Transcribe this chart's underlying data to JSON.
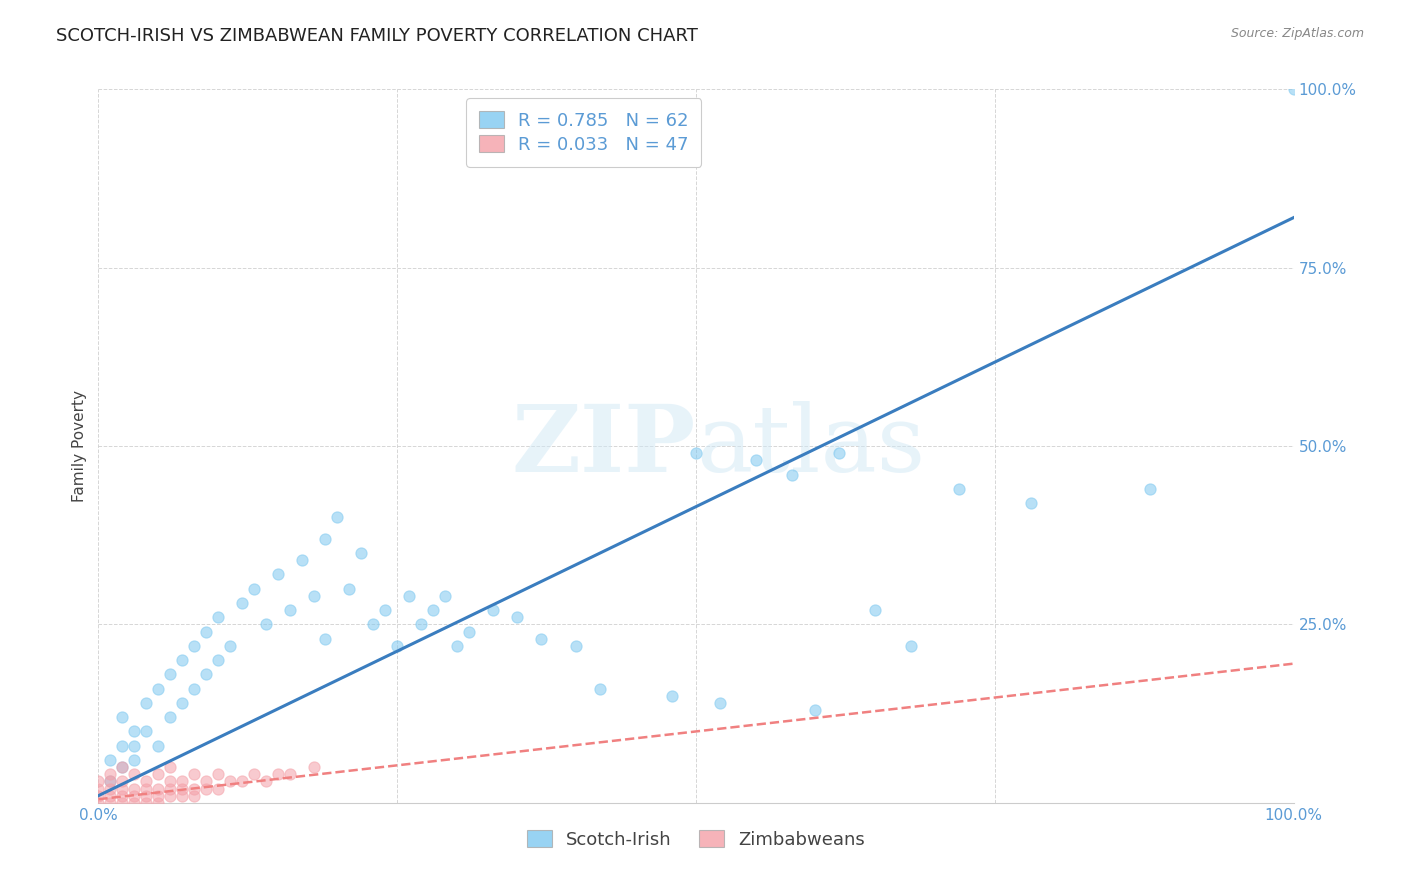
{
  "title": "SCOTCH-IRISH VS ZIMBABWEAN FAMILY POVERTY CORRELATION CHART",
  "source": "Source: ZipAtlas.com",
  "ylabel": "Family Poverty",
  "watermark_zip": "ZIP",
  "watermark_atlas": "atlas",
  "series1_name": "Scotch-Irish",
  "series2_name": "Zimbabweans",
  "series1_color": "#7ec8f0",
  "series2_color": "#f4a0a8",
  "series1_R": 0.785,
  "series1_N": 62,
  "series2_R": 0.033,
  "series2_N": 47,
  "xlim": [
    0,
    1
  ],
  "ylim": [
    0,
    1
  ],
  "background_color": "#ffffff",
  "grid_color": "#cccccc",
  "title_color": "#222222",
  "tick_color": "#5b9bd5",
  "series1_scatter_x": [
    0.01,
    0.01,
    0.02,
    0.02,
    0.02,
    0.03,
    0.03,
    0.03,
    0.04,
    0.04,
    0.05,
    0.05,
    0.06,
    0.06,
    0.07,
    0.07,
    0.08,
    0.08,
    0.09,
    0.09,
    0.1,
    0.1,
    0.11,
    0.12,
    0.13,
    0.14,
    0.15,
    0.16,
    0.17,
    0.18,
    0.19,
    0.19,
    0.2,
    0.21,
    0.22,
    0.23,
    0.24,
    0.25,
    0.26,
    0.27,
    0.28,
    0.29,
    0.3,
    0.31,
    0.33,
    0.35,
    0.37,
    0.4,
    0.42,
    0.48,
    0.5,
    0.52,
    0.55,
    0.58,
    0.6,
    0.62,
    0.65,
    0.68,
    0.72,
    0.78,
    0.88,
    1.0
  ],
  "series1_scatter_y": [
    0.03,
    0.06,
    0.05,
    0.08,
    0.12,
    0.06,
    0.08,
    0.1,
    0.1,
    0.14,
    0.08,
    0.16,
    0.12,
    0.18,
    0.14,
    0.2,
    0.16,
    0.22,
    0.18,
    0.24,
    0.2,
    0.26,
    0.22,
    0.28,
    0.3,
    0.25,
    0.32,
    0.27,
    0.34,
    0.29,
    0.23,
    0.37,
    0.4,
    0.3,
    0.35,
    0.25,
    0.27,
    0.22,
    0.29,
    0.25,
    0.27,
    0.29,
    0.22,
    0.24,
    0.27,
    0.26,
    0.23,
    0.22,
    0.16,
    0.15,
    0.49,
    0.14,
    0.48,
    0.46,
    0.13,
    0.49,
    0.27,
    0.22,
    0.44,
    0.42,
    0.44,
    1.0
  ],
  "series2_scatter_x": [
    0.0,
    0.0,
    0.0,
    0.0,
    0.01,
    0.01,
    0.01,
    0.01,
    0.01,
    0.02,
    0.02,
    0.02,
    0.02,
    0.02,
    0.03,
    0.03,
    0.03,
    0.03,
    0.04,
    0.04,
    0.04,
    0.04,
    0.05,
    0.05,
    0.05,
    0.05,
    0.06,
    0.06,
    0.06,
    0.06,
    0.07,
    0.07,
    0.07,
    0.08,
    0.08,
    0.08,
    0.09,
    0.09,
    0.1,
    0.1,
    0.11,
    0.12,
    0.13,
    0.14,
    0.15,
    0.16,
    0.18
  ],
  "series2_scatter_y": [
    0.0,
    0.01,
    0.02,
    0.03,
    0.0,
    0.01,
    0.02,
    0.03,
    0.04,
    0.0,
    0.01,
    0.02,
    0.03,
    0.05,
    0.0,
    0.01,
    0.02,
    0.04,
    0.0,
    0.01,
    0.02,
    0.03,
    0.0,
    0.01,
    0.02,
    0.04,
    0.01,
    0.02,
    0.03,
    0.05,
    0.01,
    0.02,
    0.03,
    0.01,
    0.02,
    0.04,
    0.02,
    0.03,
    0.02,
    0.04,
    0.03,
    0.03,
    0.04,
    0.03,
    0.04,
    0.04,
    0.05
  ],
  "series1_line_x": [
    0.0,
    1.0
  ],
  "series1_line_y": [
    0.01,
    0.82
  ],
  "series2_line_x": [
    0.0,
    1.0
  ],
  "series2_line_y": [
    0.005,
    0.195
  ],
  "line1_color": "#3a7dbf",
  "line2_color": "#f08080",
  "title_fontsize": 13,
  "label_fontsize": 11,
  "tick_fontsize": 11,
  "legend_fontsize": 13,
  "scatter_size": 65,
  "scatter_alpha": 0.55
}
